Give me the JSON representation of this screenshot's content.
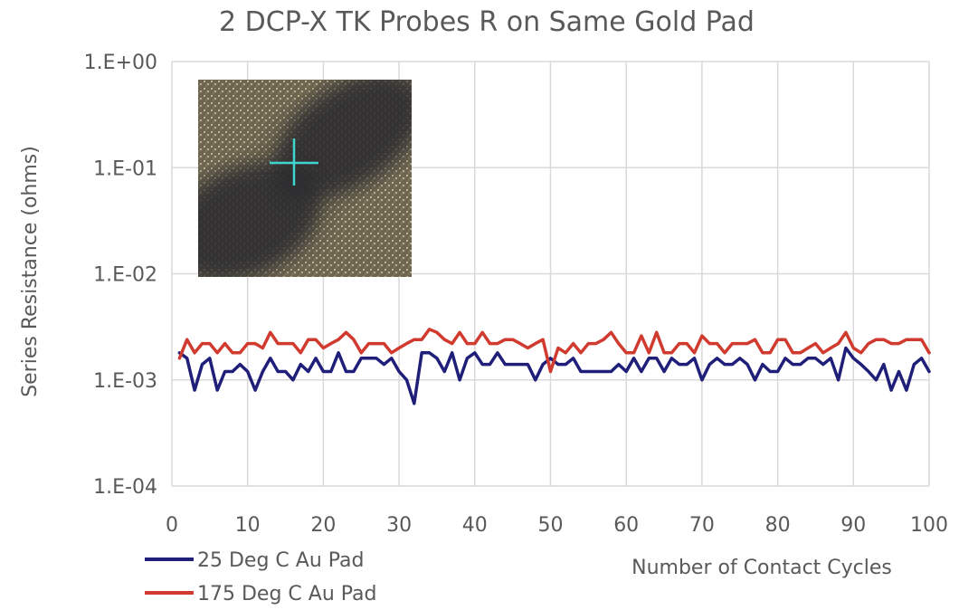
{
  "chart_data": {
    "type": "line",
    "title": "2 DCP-X TK Probes R on Same Gold Pad",
    "xlabel": "Number of Contact Cycles",
    "ylabel": "Series Resistance (ohms)",
    "xlim": [
      0,
      100
    ],
    "ylim": [
      0.0001,
      1
    ],
    "yscale": "log",
    "grid": true,
    "legend_position": "bottom-left",
    "x_ticks": [
      "0",
      "10",
      "20",
      "30",
      "40",
      "50",
      "60",
      "70",
      "80",
      "90",
      "100"
    ],
    "y_ticks": [
      "1.E+00",
      "1.E-01",
      "1.E-02",
      "1.E-03",
      "1.E-04"
    ],
    "x": [
      1,
      2,
      3,
      4,
      5,
      6,
      7,
      8,
      9,
      10,
      11,
      12,
      13,
      14,
      15,
      16,
      17,
      18,
      19,
      20,
      21,
      22,
      23,
      24,
      25,
      26,
      27,
      28,
      29,
      30,
      31,
      32,
      33,
      34,
      35,
      36,
      37,
      38,
      39,
      40,
      41,
      42,
      43,
      44,
      45,
      46,
      47,
      48,
      49,
      50,
      51,
      52,
      53,
      54,
      55,
      56,
      57,
      58,
      59,
      60,
      61,
      62,
      63,
      64,
      65,
      66,
      67,
      68,
      69,
      70,
      71,
      72,
      73,
      74,
      75,
      76,
      77,
      78,
      79,
      80,
      81,
      82,
      83,
      84,
      85,
      86,
      87,
      88,
      89,
      90,
      91,
      92,
      93,
      94,
      95,
      96,
      97,
      98,
      99,
      100
    ],
    "series": [
      {
        "name": "25 Deg C Au Pad",
        "color": "#1f1f7a",
        "values": [
          0.0018,
          0.0016,
          0.0008,
          0.0014,
          0.0016,
          0.0008,
          0.0012,
          0.0012,
          0.0014,
          0.0012,
          0.0008,
          0.0012,
          0.0016,
          0.0012,
          0.0012,
          0.001,
          0.0014,
          0.0012,
          0.0016,
          0.0012,
          0.0012,
          0.0018,
          0.0012,
          0.0012,
          0.0016,
          0.0016,
          0.0016,
          0.0014,
          0.0016,
          0.0012,
          0.001,
          0.0006,
          0.0018,
          0.0018,
          0.0016,
          0.0012,
          0.0018,
          0.001,
          0.0016,
          0.0018,
          0.0014,
          0.0014,
          0.0018,
          0.0014,
          0.0014,
          0.0014,
          0.0014,
          0.001,
          0.0014,
          0.0016,
          0.0014,
          0.0014,
          0.0016,
          0.0012,
          0.0012,
          0.0012,
          0.0012,
          0.0012,
          0.0014,
          0.0012,
          0.0016,
          0.0012,
          0.0016,
          0.0016,
          0.0012,
          0.0016,
          0.0014,
          0.0014,
          0.0016,
          0.001,
          0.0014,
          0.0016,
          0.0014,
          0.0014,
          0.0016,
          0.0014,
          0.001,
          0.0014,
          0.0012,
          0.0012,
          0.0016,
          0.0014,
          0.0014,
          0.0016,
          0.0016,
          0.0014,
          0.0016,
          0.001,
          0.002,
          0.0016,
          0.0014,
          0.0012,
          0.001,
          0.0014,
          0.0008,
          0.0012,
          0.0008,
          0.0014,
          0.0016,
          0.0012
        ]
      },
      {
        "name": "175 Deg C Au Pad",
        "color": "#d13a2f",
        "values": [
          0.0016,
          0.0024,
          0.0018,
          0.0022,
          0.0022,
          0.0018,
          0.0022,
          0.0018,
          0.0018,
          0.0022,
          0.0022,
          0.002,
          0.0028,
          0.0022,
          0.0022,
          0.0022,
          0.0018,
          0.0024,
          0.0024,
          0.002,
          0.0022,
          0.0024,
          0.0028,
          0.0024,
          0.0018,
          0.0022,
          0.0022,
          0.0022,
          0.0018,
          0.002,
          0.0022,
          0.0024,
          0.0024,
          0.003,
          0.0028,
          0.0024,
          0.0022,
          0.0028,
          0.0022,
          0.0022,
          0.0028,
          0.0022,
          0.0022,
          0.0024,
          0.0024,
          0.0022,
          0.002,
          0.0022,
          0.0024,
          0.0012,
          0.002,
          0.0018,
          0.0022,
          0.0018,
          0.0022,
          0.0022,
          0.0024,
          0.0028,
          0.0022,
          0.0018,
          0.0018,
          0.0026,
          0.0018,
          0.0028,
          0.0018,
          0.0018,
          0.0022,
          0.0022,
          0.0018,
          0.0026,
          0.0022,
          0.0022,
          0.0018,
          0.0022,
          0.0022,
          0.0022,
          0.0024,
          0.0018,
          0.0018,
          0.0024,
          0.0024,
          0.0018,
          0.0018,
          0.002,
          0.0022,
          0.0018,
          0.002,
          0.0022,
          0.0028,
          0.002,
          0.0018,
          0.0022,
          0.0024,
          0.0024,
          0.0022,
          0.0022,
          0.0024,
          0.0024,
          0.0024,
          0.0018
        ]
      }
    ]
  },
  "inset": {
    "marker_color": "#3fd6d0"
  }
}
